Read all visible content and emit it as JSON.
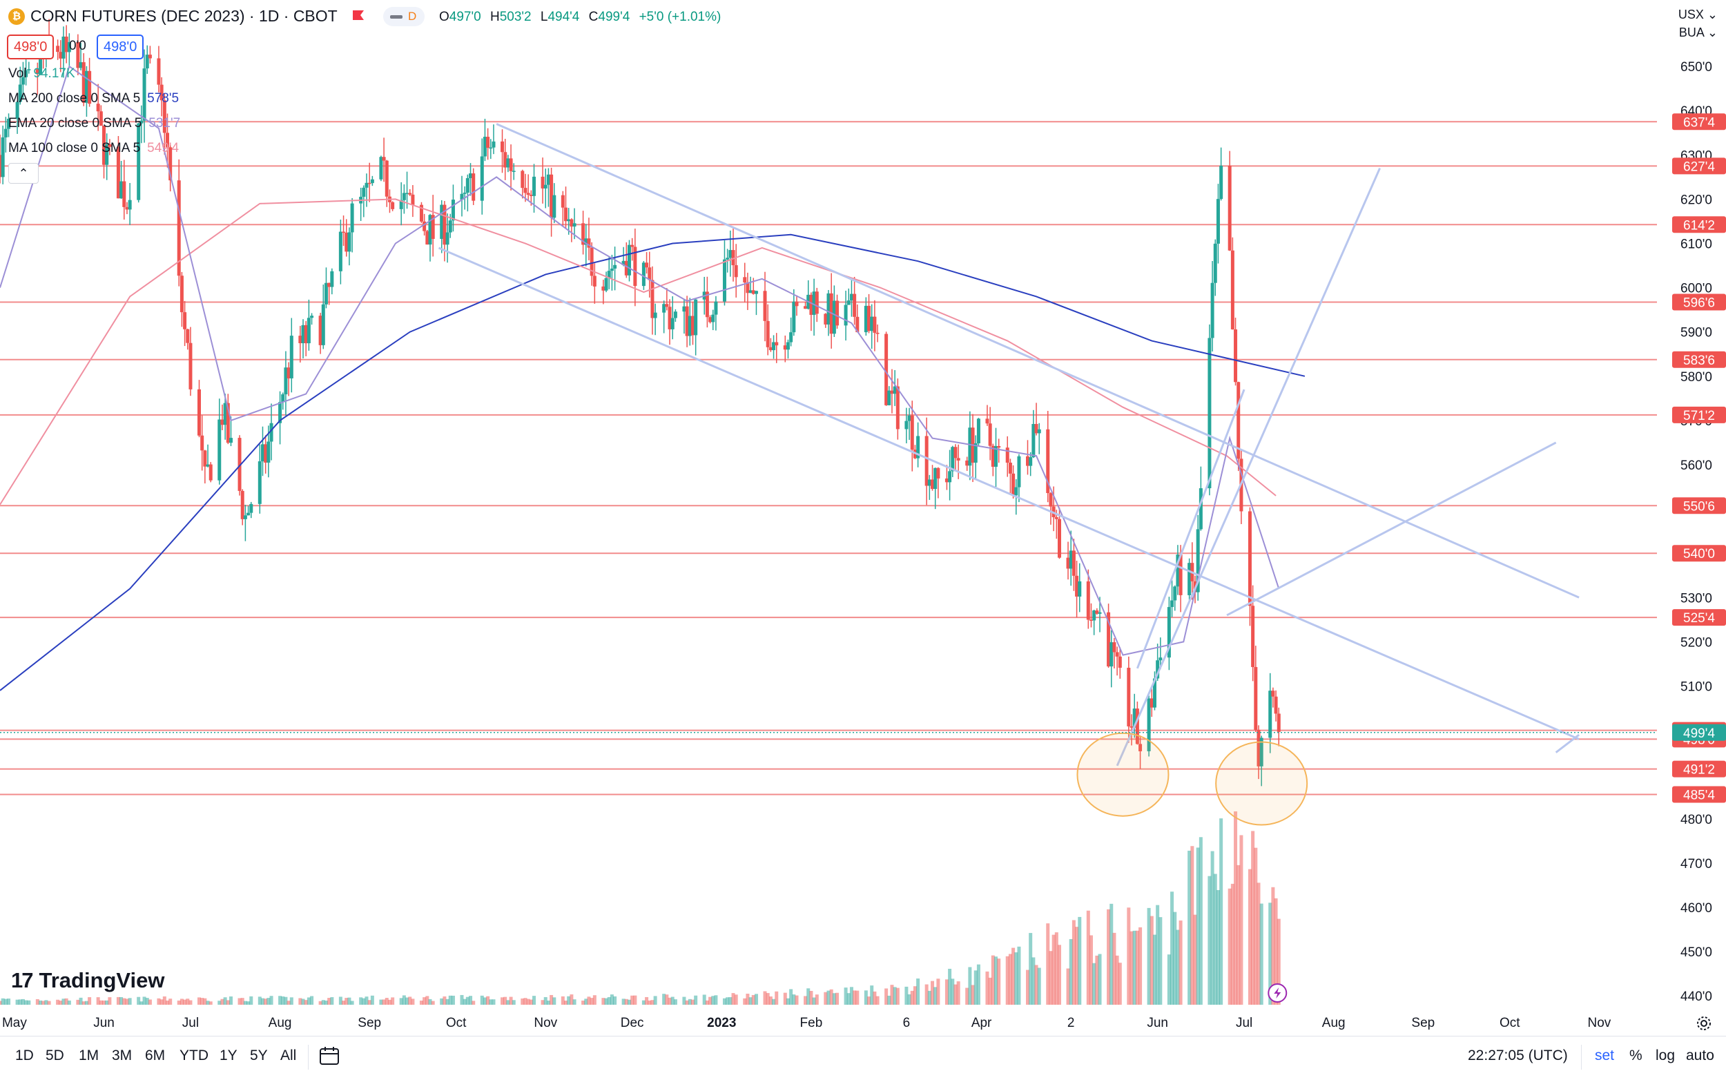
{
  "header": {
    "symbol_icon": "coin-icon",
    "title": "CORN FUTURES (DEC 2023) · 1D · CBOT",
    "interval_badge": "D",
    "o_label": "O",
    "o_value": "497'0",
    "h_label": "H",
    "h_value": "503'2",
    "l_label": "L",
    "l_value": "494'4",
    "c_label": "C",
    "c_value": "499'4",
    "change": "+5'0 (+1.01%)",
    "sell_price": "498'0",
    "spread": "0'0",
    "buy_price": "498'0"
  },
  "indicators": [
    {
      "label": "Vol",
      "value": "94.17K",
      "color": "#26a69a"
    },
    {
      "label": "MA 200 close 0 SMA 5",
      "value": "578'5",
      "color": "#2a3fbf"
    },
    {
      "label": "EMA 20 close 0 SMA 5",
      "value": "531'7",
      "color": "#9c8fd6"
    },
    {
      "label": "MA 100 close 0 SMA 5",
      "value": "549'4",
      "color": "#f08fa0"
    }
  ],
  "currency": "USX",
  "currency_arrow": "chevron-down-icon",
  "exchange_code": "BUA",
  "chart_data": {
    "type": "candlestick",
    "y_ticks": [
      650,
      640,
      630,
      620,
      610,
      600,
      590,
      580,
      570,
      560,
      530,
      520,
      510,
      480,
      470,
      460,
      450,
      440
    ],
    "y_tick_labels": [
      "650'0",
      "640'0",
      "630'0",
      "620'0",
      "610'0",
      "600'0",
      "590'0",
      "580'0",
      "570'0",
      "560'0",
      "530'0",
      "520'0",
      "510'0",
      "480'0",
      "470'0",
      "460'0",
      "450'0",
      "440'0"
    ],
    "ylim": [
      438,
      665
    ],
    "x_labels": [
      "May",
      "Jun",
      "Jul",
      "Aug",
      "Sep",
      "Oct",
      "Nov",
      "Dec",
      "2023",
      "Feb",
      "6",
      "Apr",
      "2",
      "Jun",
      "Jul",
      "Aug",
      "Sep",
      "Oct",
      "Nov"
    ],
    "x_label_dates": [
      "2022-05-01",
      "2022-06-01",
      "2022-07-01",
      "2022-08-01",
      "2022-09-01",
      "2022-10-01",
      "2022-11-01",
      "2022-12-01",
      "2023-01-01",
      "2023-02-01",
      "2023-03-06",
      "2023-04-01",
      "2023-05-02",
      "2023-06-01",
      "2023-07-01",
      "2023-08-01",
      "2023-09-01",
      "2023-10-01",
      "2023-11-01"
    ],
    "horizontal_levels": [
      {
        "value": 637.5,
        "label": "637'4"
      },
      {
        "value": 627.5,
        "label": "627'4"
      },
      {
        "value": 614.25,
        "label": "614'2"
      },
      {
        "value": 596.75,
        "label": "596'6"
      },
      {
        "value": 583.75,
        "label": "583'6"
      },
      {
        "value": 571.25,
        "label": "571'2"
      },
      {
        "value": 550.75,
        "label": "550'6"
      },
      {
        "value": 540.0,
        "label": "540'0"
      },
      {
        "value": 525.5,
        "label": "525'4"
      },
      {
        "value": 500.0,
        "label": "500'0"
      },
      {
        "value": 498.0,
        "label": "498'0"
      },
      {
        "value": 491.25,
        "label": "491'2"
      },
      {
        "value": 485.5,
        "label": "485'4"
      }
    ],
    "last_price": {
      "value": 499.5,
      "label": "499'4"
    },
    "close_path": [
      [
        "2022-04-26",
        630
      ],
      [
        "2022-05-05",
        645
      ],
      [
        "2022-05-15",
        655
      ],
      [
        "2022-05-24",
        648
      ],
      [
        "2022-06-03",
        628
      ],
      [
        "2022-06-09",
        620
      ],
      [
        "2022-06-16",
        650
      ],
      [
        "2022-06-22",
        638
      ],
      [
        "2022-06-27",
        600
      ],
      [
        "2022-07-06",
        555
      ],
      [
        "2022-07-12",
        572
      ],
      [
        "2022-07-20",
        548
      ],
      [
        "2022-07-27",
        562
      ],
      [
        "2022-08-05",
        585
      ],
      [
        "2022-08-15",
        592
      ],
      [
        "2022-08-25",
        615
      ],
      [
        "2022-09-05",
        625
      ],
      [
        "2022-09-15",
        618
      ],
      [
        "2022-09-23",
        612
      ],
      [
        "2022-10-03",
        618
      ],
      [
        "2022-10-12",
        632
      ],
      [
        "2022-10-20",
        628
      ],
      [
        "2022-11-01",
        622
      ],
      [
        "2022-11-10",
        612
      ],
      [
        "2022-11-20",
        603
      ],
      [
        "2022-11-30",
        608
      ],
      [
        "2022-12-08",
        597
      ],
      [
        "2022-12-18",
        592
      ],
      [
        "2022-12-28",
        596
      ],
      [
        "2023-01-04",
        608
      ],
      [
        "2023-01-12",
        596
      ],
      [
        "2023-01-20",
        588
      ],
      [
        "2023-02-01",
        598
      ],
      [
        "2023-02-10",
        592
      ],
      [
        "2023-02-20",
        596
      ],
      [
        "2023-02-28",
        575
      ],
      [
        "2023-03-08",
        568
      ],
      [
        "2023-03-16",
        555
      ],
      [
        "2023-03-24",
        562
      ],
      [
        "2023-04-02",
        567
      ],
      [
        "2023-04-12",
        556
      ],
      [
        "2023-04-20",
        570
      ],
      [
        "2023-04-27",
        546
      ],
      [
        "2023-05-04",
        532
      ],
      [
        "2023-05-12",
        526
      ],
      [
        "2023-05-20",
        507
      ],
      [
        "2023-05-27",
        495
      ],
      [
        "2023-06-02",
        520
      ],
      [
        "2023-06-08",
        535
      ],
      [
        "2023-06-14",
        532
      ],
      [
        "2023-06-20",
        598
      ],
      [
        "2023-06-23",
        625
      ],
      [
        "2023-06-26",
        605
      ],
      [
        "2023-06-29",
        560
      ],
      [
        "2023-07-03",
        525
      ],
      [
        "2023-07-06",
        493
      ],
      [
        "2023-07-10",
        506
      ],
      [
        "2023-07-13",
        499.5
      ]
    ],
    "volume_path": [
      [
        "2022-04-26",
        2
      ],
      [
        "2022-12-31",
        3
      ],
      [
        "2023-03-01",
        6
      ],
      [
        "2023-04-01",
        12
      ],
      [
        "2023-05-01",
        25
      ],
      [
        "2023-06-01",
        30
      ],
      [
        "2023-06-20",
        55
      ],
      [
        "2023-06-28",
        72
      ],
      [
        "2023-07-05",
        48
      ],
      [
        "2023-07-13",
        30
      ]
    ],
    "volume_max": 75,
    "moving_averages": [
      {
        "name": "MA 200",
        "color": "#2a3fbf",
        "points": [
          [
            "2022-04-26",
            509
          ],
          [
            "2022-06-10",
            532
          ],
          [
            "2022-08-01",
            570
          ],
          [
            "2022-09-15",
            590
          ],
          [
            "2022-11-01",
            603
          ],
          [
            "2022-12-15",
            610
          ],
          [
            "2023-01-25",
            612
          ],
          [
            "2023-03-10",
            606
          ],
          [
            "2023-04-20",
            598
          ],
          [
            "2023-05-30",
            588
          ],
          [
            "2023-07-22",
            580
          ]
        ]
      },
      {
        "name": "MA 100",
        "color": "#f08fa0",
        "points": [
          [
            "2022-04-26",
            551
          ],
          [
            "2022-06-10",
            598
          ],
          [
            "2022-07-25",
            619
          ],
          [
            "2022-09-10",
            620
          ],
          [
            "2022-10-25",
            610
          ],
          [
            "2022-12-05",
            599
          ],
          [
            "2023-01-15",
            609
          ],
          [
            "2023-02-25",
            600
          ],
          [
            "2023-04-10",
            588
          ],
          [
            "2023-05-20",
            573
          ],
          [
            "2023-06-25",
            562
          ],
          [
            "2023-07-12",
            553
          ]
        ]
      },
      {
        "name": "EMA 20",
        "color": "#9c8fd6",
        "points": [
          [
            "2022-04-26",
            600
          ],
          [
            "2022-05-20",
            650
          ],
          [
            "2022-06-20",
            636
          ],
          [
            "2022-07-15",
            570
          ],
          [
            "2022-08-10",
            576
          ],
          [
            "2022-09-10",
            610
          ],
          [
            "2022-10-15",
            625
          ],
          [
            "2022-11-15",
            610
          ],
          [
            "2022-12-20",
            597
          ],
          [
            "2023-01-15",
            602
          ],
          [
            "2023-02-15",
            592
          ],
          [
            "2023-03-15",
            566
          ],
          [
            "2023-04-20",
            562
          ],
          [
            "2023-05-20",
            517
          ],
          [
            "2023-06-10",
            520
          ],
          [
            "2023-06-26",
            566
          ],
          [
            "2023-07-13",
            532
          ]
        ]
      }
    ],
    "trendlines": [
      [
        [
          "2022-10-15",
          637
        ],
        [
          "2023-10-25",
          530
        ]
      ],
      [
        [
          "2022-09-25",
          609
        ],
        [
          "2023-10-25",
          498
        ]
      ],
      [
        [
          "2023-05-18",
          492
        ],
        [
          "2023-08-17",
          627
        ]
      ],
      [
        [
          "2023-05-25",
          514
        ],
        [
          "2023-07-01",
          577
        ]
      ],
      [
        [
          "2023-06-25",
          526
        ],
        [
          "2023-10-17",
          565
        ]
      ],
      [
        [
          "2023-10-17",
          495
        ],
        [
          "2023-10-25",
          499
        ]
      ]
    ],
    "circles": [
      [
        "2023-05-20",
        490
      ],
      [
        "2023-07-07",
        488
      ]
    ],
    "colors": {
      "up": "#26a69a",
      "down": "#ef5350",
      "level": "#f28b8b",
      "trend": "#b8c6ee",
      "circle": "#f5b55a"
    }
  },
  "watermark": {
    "brand": "TradingView",
    "logo_icon": "tradingview-logo-icon"
  },
  "bottom_bar": {
    "timeframes": [
      "1D",
      "5D",
      "1M",
      "3M",
      "6M",
      "YTD",
      "1Y",
      "5Y",
      "All"
    ],
    "calendar_icon": "calendar-icon",
    "clock": "22:27:05 (UTC)",
    "options": [
      "set",
      "%",
      "log",
      "auto"
    ]
  },
  "settings_icon": "gear-icon"
}
